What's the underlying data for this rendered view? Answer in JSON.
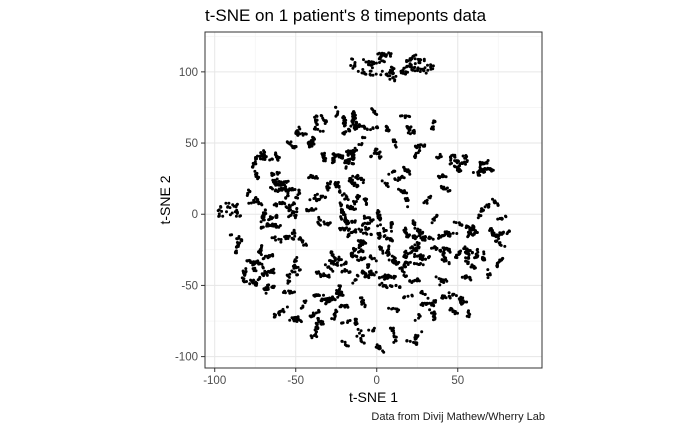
{
  "chart_data": {
    "type": "scatter",
    "title": "t-SNE on 1 patient's 8 timeponts data",
    "xlabel": "t-SNE 1",
    "ylabel": "t-SNE 2",
    "caption": "Data from Divij Mathew/Wherry Lab",
    "xlim": [
      -106,
      102
    ],
    "ylim": [
      -108,
      128
    ],
    "x_ticks": [
      -100,
      -50,
      0,
      50
    ],
    "x_tick_labels": [
      "-100",
      "-50",
      "0",
      "50"
    ],
    "y_ticks": [
      -100,
      -50,
      0,
      50,
      100
    ],
    "y_tick_labels": [
      "-100",
      "-50",
      "0",
      "50",
      "100"
    ],
    "grid": true,
    "legend": "none",
    "point_color": "#000000",
    "clusters": [
      {
        "description_values": "main cloud",
        "x_range": [
          -100,
          90
        ],
        "y_range": [
          -97,
          75
        ],
        "approx_center": [
          -2,
          -10
        ],
        "approx_radius": [
          90,
          85
        ]
      },
      {
        "description_values": "upper cluster",
        "x_range": [
          -22,
          35
        ],
        "y_range": [
          95,
          117
        ],
        "approx_center": [
          8,
          104
        ],
        "approx_radius": [
          28,
          10
        ]
      }
    ]
  }
}
